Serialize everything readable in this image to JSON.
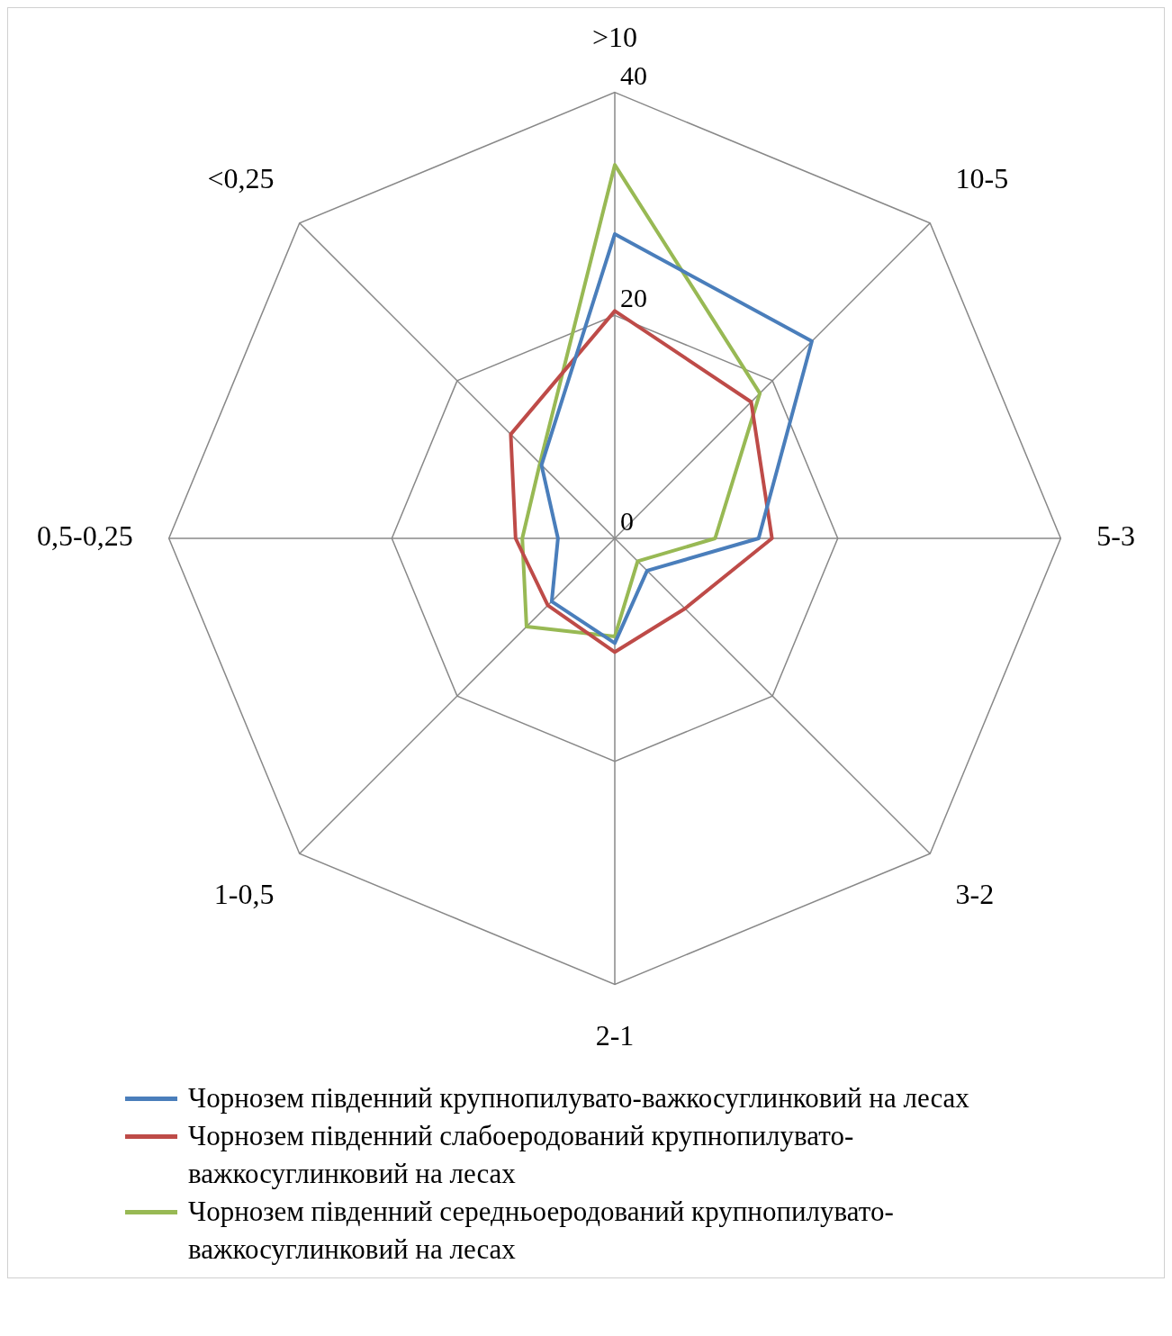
{
  "chart_data": {
    "type": "radar",
    "categories": [
      ">10",
      "10-5",
      "5-3",
      "3-2",
      "2-1",
      "1-0,5",
      "0,5-0,25",
      "<0,25"
    ],
    "ylim": [
      0,
      40
    ],
    "yticks": [
      0,
      20,
      40
    ],
    "grid": true,
    "legend": "bottom",
    "marker": "none",
    "series": [
      {
        "name": "Чорнозем південний крупнопилувато-важкосуглинковий на лесах",
        "color": "#4a7ebb",
        "values": [
          27.3,
          25.0,
          12.9,
          4.1,
          9.4,
          8.0,
          5.1,
          9.3
        ]
      },
      {
        "name": "Чорнозем південний слабоеродований крупнопилувато-важкосуглинковий на лесах",
        "color": "#be4b48",
        "values": [
          20.4,
          17.3,
          14.1,
          8.9,
          10.2,
          8.5,
          8.9,
          13.2
        ]
      },
      {
        "name": "Чорнозем південний середньоеродований крупнопилувато-важкосуглинковий на лесах",
        "color": "#98b954",
        "values": [
          33.5,
          18.4,
          9.0,
          2.9,
          8.8,
          11.2,
          8.3,
          9.5
        ]
      }
    ]
  }
}
